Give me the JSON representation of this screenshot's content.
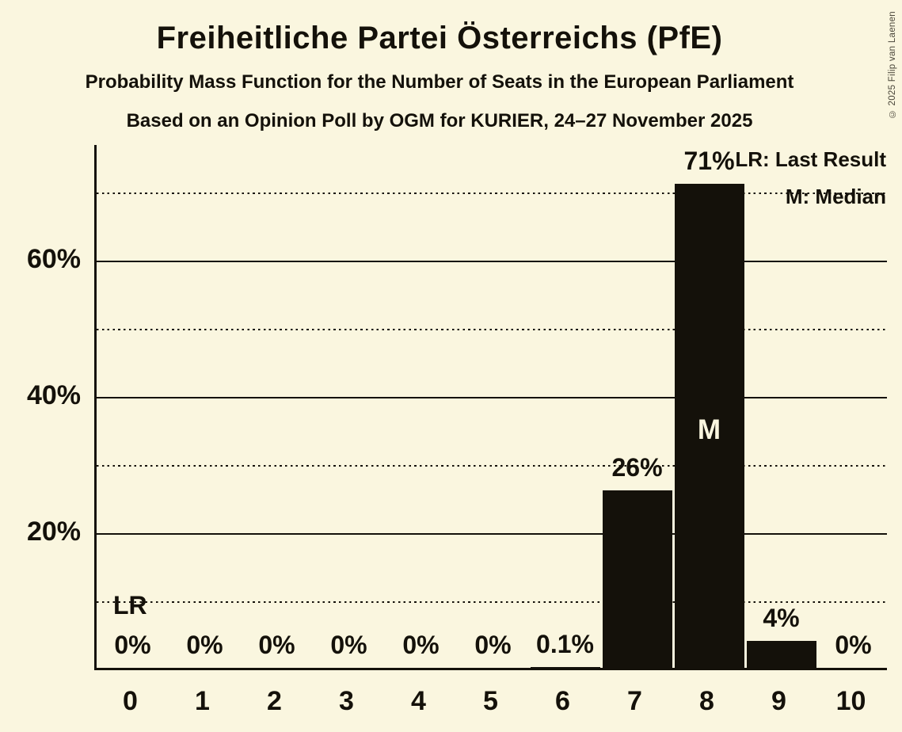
{
  "page": {
    "background_color": "#FAF6DF",
    "ink_color": "#14110A"
  },
  "header": {
    "title": "Freiheitliche Partei Österreichs (PfE)",
    "subtitle1": "Probability Mass Function for the Number of Seats in the European Parliament",
    "subtitle2": "Based on an Opinion Poll by OGM for KURIER, 24–27 November 2025"
  },
  "legend": {
    "lr": "LR: Last Result",
    "m": "M: Median"
  },
  "copyright": "© 2025 Filip van Laenen",
  "chart_data": {
    "type": "bar",
    "title": "Freiheitliche Partei Österreichs (PfE)",
    "subtitle": "Probability Mass Function for the Number of Seats in the European Parliament",
    "source_line": "Based on an Opinion Poll by OGM for KURIER, 24–27 November 2025",
    "xlabel": "",
    "ylabel": "",
    "categories": [
      "0",
      "1",
      "2",
      "3",
      "4",
      "5",
      "6",
      "7",
      "8",
      "9",
      "10"
    ],
    "values": [
      0,
      0,
      0,
      0,
      0,
      0,
      0.1,
      26,
      71,
      4,
      0
    ],
    "bar_labels": [
      "0%",
      "0%",
      "0%",
      "0%",
      "0%",
      "0%",
      "0.1%",
      "26%",
      "71%",
      "4%",
      "0%"
    ],
    "ylim": [
      0,
      77
    ],
    "y_ticks_solid": [
      20,
      40,
      60
    ],
    "y_ticks_dotted": [
      10,
      30,
      50,
      70
    ],
    "y_tick_labels": [
      {
        "value": 20,
        "label": "20%"
      },
      {
        "value": 40,
        "label": "40%"
      },
      {
        "value": 60,
        "label": "60%"
      }
    ],
    "grid": "solid lines at 20/40/60, dotted lines at 10/30/50/70",
    "legend_position": "top-right",
    "bar_color": "#14110A",
    "median": {
      "seat_index": 8,
      "marker": "M"
    },
    "last_result": {
      "seat_index": 0,
      "marker": "LR"
    }
  }
}
